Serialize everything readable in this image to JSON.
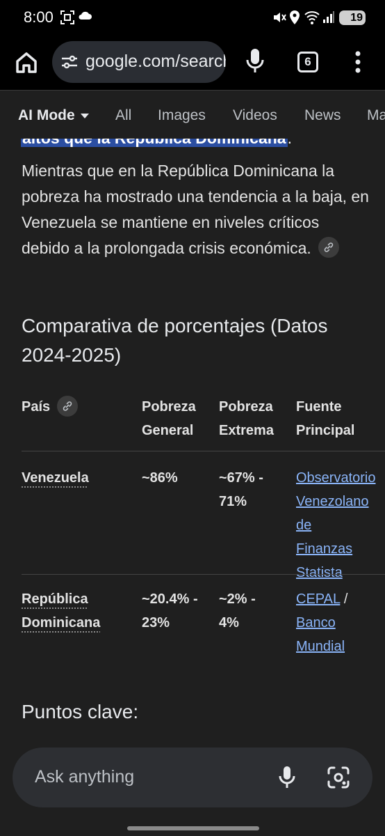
{
  "status_bar": {
    "time": "8:00",
    "battery": "19",
    "icons": [
      "screenshot-icon",
      "cloud-icon",
      "mute-icon",
      "location-icon",
      "wifi-icon",
      "signal-icon"
    ]
  },
  "browser": {
    "url": "google.com/search",
    "tab_count": "6"
  },
  "search_tabs": [
    {
      "label": "AI Mode"
    },
    {
      "label": "All"
    },
    {
      "label": "Images"
    },
    {
      "label": "Videos"
    },
    {
      "label": "News"
    },
    {
      "label": "Ma"
    }
  ],
  "content": {
    "highlight_text": "altos que la República Dominicana",
    "highlight_tail": ".",
    "paragraph": "Mientras que en la República Dominicana la pobreza ha mostrado una tendencia a la baja, en Venezuela se mantiene en niveles críticos debido a la prolongada crisis económica.",
    "table_section_title": "Comparativa de porcentajes (Datos 2024-2025)",
    "table": {
      "headers": [
        "País",
        "Pobreza General",
        "Pobreza Extrema",
        "Fuente Principal"
      ],
      "rows": [
        {
          "country": "Venezuela",
          "general": "~86%",
          "extrema": "~67% - 71%",
          "source_link1": "Observatorio Venezolano de Finanzas",
          "source_sep": "",
          "source_link2": "Statista"
        },
        {
          "country": "República Dominicana",
          "general": "~20.4% - 23%",
          "extrema": "~2% - 4%",
          "source_link1": "CEPAL",
          "source_sep": " / ",
          "source_link2": "Banco Mundial"
        }
      ]
    },
    "key_points_title": "Puntos clave:"
  },
  "ask_bar": {
    "placeholder": "Ask anything"
  },
  "colors": {
    "background": "#1f1f1f",
    "link": "#8ab4f8",
    "highlight": "#2b4ea2"
  }
}
